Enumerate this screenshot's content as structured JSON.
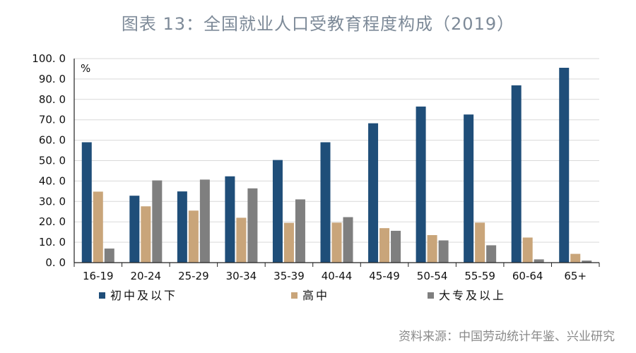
{
  "header": {
    "title": "图表 13：全国就业人口受教育程度构成（2019）"
  },
  "footer": {
    "source": "资料来源：中国劳动统计年鉴、兴业研究"
  },
  "chart_data": {
    "type": "bar",
    "title": "图表 13：全国就业人口受教育程度构成（2019）",
    "unit_label": "%",
    "xlabel": "",
    "ylabel": "%",
    "ylim": [
      0,
      100
    ],
    "ytick_step": 10,
    "ytick_labels": [
      "0. 0",
      "10. 0",
      "20. 0",
      "30. 0",
      "40. 0",
      "50. 0",
      "60. 0",
      "70. 0",
      "80. 0",
      "90. 0",
      "100. 0"
    ],
    "categories": [
      "16-19",
      "20-24",
      "25-29",
      "30-34",
      "35-39",
      "40-44",
      "45-49",
      "50-54",
      "55-59",
      "60-64",
      "65+"
    ],
    "series": [
      {
        "name": "初中及以下",
        "color": "#1f4e79",
        "values": [
          59.0,
          32.8,
          34.9,
          42.3,
          50.3,
          59.0,
          68.3,
          76.5,
          72.6,
          86.9,
          95.5
        ]
      },
      {
        "name": "高中",
        "color": "#c9a57a",
        "values": [
          34.8,
          27.6,
          25.5,
          22.0,
          19.5,
          19.6,
          16.9,
          13.5,
          19.6,
          12.3,
          4.3
        ]
      },
      {
        "name": "大专及以上",
        "color": "#7f7f7f",
        "values": [
          6.9,
          40.3,
          40.7,
          36.4,
          31.0,
          22.3,
          15.6,
          10.9,
          8.5,
          1.6,
          1.0
        ]
      }
    ],
    "legend_position": "bottom",
    "grid": true
  }
}
